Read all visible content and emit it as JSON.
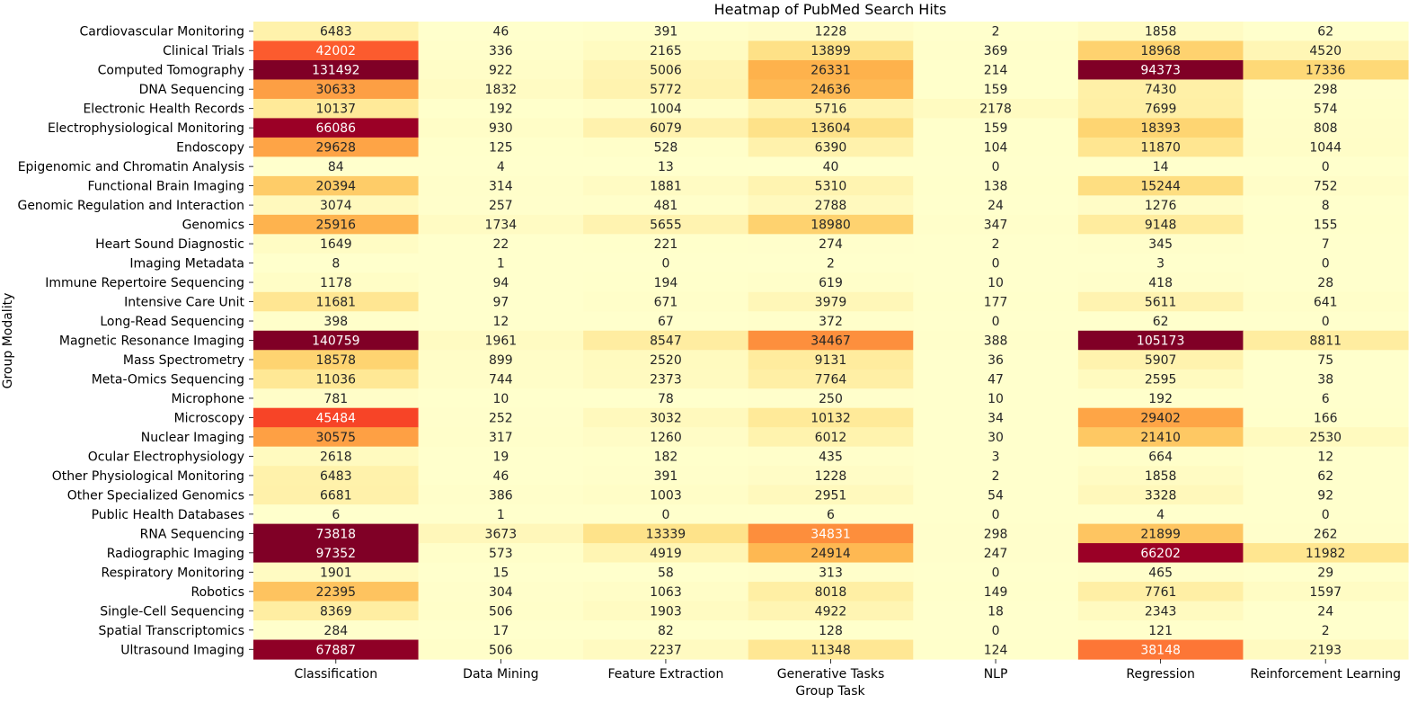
{
  "chart_data": {
    "type": "heatmap",
    "title": "Heatmap of PubMed Search Hits",
    "xlabel": "Group Task",
    "ylabel": "Group Modality",
    "legend": "none",
    "colormap": "YlOrRd",
    "color_max": 70000,
    "columns": [
      "Classification",
      "Data Mining",
      "Feature Extraction",
      "Generative Tasks",
      "NLP",
      "Regression",
      "Reinforcement Learning"
    ],
    "rows": [
      "Cardiovascular Monitoring",
      "Clinical Trials",
      "Computed Tomography",
      "DNA Sequencing",
      "Electronic Health Records",
      "Electrophysiological Monitoring",
      "Endoscopy",
      "Epigenomic and Chromatin Analysis",
      "Functional Brain Imaging",
      "Genomic Regulation and Interaction",
      "Genomics",
      "Heart Sound Diagnostic",
      "Imaging Metadata",
      "Immune Repertoire Sequencing",
      "Intensive Care Unit",
      "Long-Read Sequencing",
      "Magnetic Resonance Imaging",
      "Mass Spectrometry",
      "Meta-Omics Sequencing",
      "Microphone",
      "Microscopy",
      "Nuclear Imaging",
      "Ocular Electrophysiology",
      "Other Physiological Monitoring",
      "Other Specialized Genomics",
      "Public Health Databases",
      "RNA Sequencing",
      "Radiographic Imaging",
      "Respiratory Monitoring",
      "Robotics",
      "Single-Cell Sequencing",
      "Spatial Transcriptomics",
      "Ultrasound Imaging"
    ],
    "values": [
      [
        6483,
        46,
        391,
        1228,
        2,
        1858,
        62
      ],
      [
        42002,
        336,
        2165,
        13899,
        369,
        18968,
        4520
      ],
      [
        131492,
        922,
        5006,
        26331,
        214,
        94373,
        17336
      ],
      [
        30633,
        1832,
        5772,
        24636,
        159,
        7430,
        298
      ],
      [
        10137,
        192,
        1004,
        5716,
        2178,
        7699,
        574
      ],
      [
        66086,
        930,
        6079,
        13604,
        159,
        18393,
        808
      ],
      [
        29628,
        125,
        528,
        6390,
        104,
        11870,
        1044
      ],
      [
        84,
        4,
        13,
        40,
        0,
        14,
        0
      ],
      [
        20394,
        314,
        1881,
        5310,
        138,
        15244,
        752
      ],
      [
        3074,
        257,
        481,
        2788,
        24,
        1276,
        8
      ],
      [
        25916,
        1734,
        5655,
        18980,
        347,
        9148,
        155
      ],
      [
        1649,
        22,
        221,
        274,
        2,
        345,
        7
      ],
      [
        8,
        1,
        0,
        2,
        0,
        3,
        0
      ],
      [
        1178,
        94,
        194,
        619,
        10,
        418,
        28
      ],
      [
        11681,
        97,
        671,
        3979,
        177,
        5611,
        641
      ],
      [
        398,
        12,
        67,
        372,
        0,
        62,
        0
      ],
      [
        140759,
        1961,
        8547,
        34467,
        388,
        105173,
        8811
      ],
      [
        18578,
        899,
        2520,
        9131,
        36,
        5907,
        75
      ],
      [
        11036,
        744,
        2373,
        7764,
        47,
        2595,
        38
      ],
      [
        781,
        10,
        78,
        250,
        10,
        192,
        6
      ],
      [
        45484,
        252,
        3032,
        10132,
        34,
        29402,
        166
      ],
      [
        30575,
        317,
        1260,
        6012,
        30,
        21410,
        2530
      ],
      [
        2618,
        19,
        182,
        435,
        3,
        664,
        12
      ],
      [
        6483,
        46,
        391,
        1228,
        2,
        1858,
        62
      ],
      [
        6681,
        386,
        1003,
        2951,
        54,
        3328,
        92
      ],
      [
        6,
        1,
        0,
        6,
        0,
        4,
        0
      ],
      [
        73818,
        3673,
        13339,
        34831,
        298,
        21899,
        262
      ],
      [
        97352,
        573,
        4919,
        24914,
        247,
        66202,
        11982
      ],
      [
        1901,
        15,
        58,
        313,
        0,
        465,
        29
      ],
      [
        22395,
        304,
        1063,
        8018,
        149,
        7761,
        1597
      ],
      [
        8369,
        506,
        1903,
        4922,
        18,
        2343,
        24
      ],
      [
        284,
        17,
        82,
        128,
        0,
        121,
        2
      ],
      [
        67887,
        506,
        2237,
        11348,
        124,
        38148,
        2193
      ]
    ]
  }
}
